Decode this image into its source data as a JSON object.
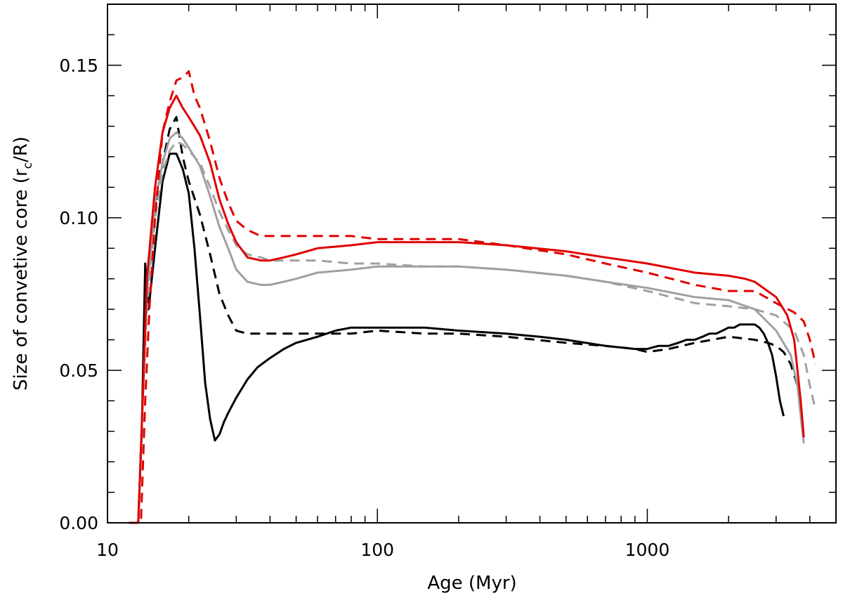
{
  "chart_data": {
    "type": "line",
    "title": "",
    "xlabel": "Age (Myr)",
    "ylabel_parts": {
      "prefix": "Size of convetive core (r",
      "sub": "c",
      "suffix": "/R)"
    },
    "xscale": "log",
    "xlim": [
      10,
      5000
    ],
    "ylim": [
      0,
      0.17
    ],
    "xticks": [
      {
        "value": 10,
        "label": "10"
      },
      {
        "value": 100,
        "label": "100"
      },
      {
        "value": 1000,
        "label": "1000"
      }
    ],
    "yticks": [
      {
        "value": 0.0,
        "label": "0.00"
      },
      {
        "value": 0.05,
        "label": "0.05"
      },
      {
        "value": 0.1,
        "label": "0.10"
      },
      {
        "value": 0.15,
        "label": "0.15"
      }
    ],
    "yminor_step": 0.01,
    "grid": false,
    "series": [
      {
        "name": "black solid",
        "color": "#000000",
        "dash": "solid",
        "x": [
          13,
          13.4,
          13.8,
          14.2,
          15,
          16,
          17,
          18,
          19,
          20,
          21,
          22,
          23,
          24,
          25,
          26,
          27,
          28,
          30,
          33,
          36,
          40,
          45,
          50,
          60,
          70,
          80,
          100,
          120,
          150,
          200,
          300,
          400,
          500,
          700,
          900,
          1000,
          1100,
          1200,
          1300,
          1400,
          1500,
          1600,
          1700,
          1800,
          1900,
          2000,
          2100,
          2200,
          2300,
          2400,
          2500,
          2600,
          2700,
          2800,
          2900,
          3000,
          3100,
          3200
        ],
        "y": [
          0.0,
          0.03,
          0.085,
          0.07,
          0.09,
          0.112,
          0.121,
          0.121,
          0.116,
          0.108,
          0.09,
          0.068,
          0.046,
          0.034,
          0.027,
          0.029,
          0.033,
          0.036,
          0.041,
          0.047,
          0.051,
          0.054,
          0.057,
          0.059,
          0.061,
          0.063,
          0.064,
          0.064,
          0.064,
          0.064,
          0.063,
          0.062,
          0.061,
          0.06,
          0.058,
          0.057,
          0.057,
          0.058,
          0.058,
          0.059,
          0.06,
          0.06,
          0.061,
          0.062,
          0.062,
          0.063,
          0.064,
          0.064,
          0.065,
          0.065,
          0.065,
          0.065,
          0.064,
          0.062,
          0.059,
          0.055,
          0.048,
          0.04,
          0.035
        ]
      },
      {
        "name": "black dashed",
        "color": "#000000",
        "dash": "dashed",
        "x": [
          13,
          13.5,
          14,
          15,
          16,
          17,
          18,
          19,
          20,
          22,
          24,
          26,
          28,
          30,
          33,
          40,
          50,
          60,
          80,
          100,
          150,
          200,
          300,
          500,
          700,
          900,
          1000,
          1200,
          1500,
          2000,
          2500,
          2800,
          3000,
          3200,
          3400,
          3600
        ],
        "y": [
          0.0,
          0.04,
          0.075,
          0.1,
          0.118,
          0.129,
          0.133,
          0.12,
          0.112,
          0.101,
          0.088,
          0.075,
          0.068,
          0.063,
          0.062,
          0.062,
          0.062,
          0.062,
          0.062,
          0.063,
          0.062,
          0.062,
          0.061,
          0.059,
          0.058,
          0.057,
          0.056,
          0.057,
          0.059,
          0.061,
          0.06,
          0.059,
          0.058,
          0.056,
          0.052,
          0.045
        ]
      },
      {
        "name": "gray solid",
        "color": "#a0a0a0",
        "dash": "solid",
        "x": [
          13,
          13.5,
          14,
          15,
          16,
          17,
          18,
          19,
          20,
          22,
          24,
          26,
          28,
          30,
          33,
          37,
          40,
          45,
          50,
          60,
          80,
          100,
          150,
          200,
          300,
          500,
          700,
          1000,
          1500,
          2000,
          2500,
          3000,
          3400,
          3600,
          3700,
          3800
        ],
        "y": [
          0.0,
          0.04,
          0.075,
          0.105,
          0.118,
          0.126,
          0.128,
          0.126,
          0.123,
          0.117,
          0.107,
          0.097,
          0.09,
          0.083,
          0.079,
          0.078,
          0.078,
          0.079,
          0.08,
          0.082,
          0.083,
          0.084,
          0.084,
          0.084,
          0.083,
          0.081,
          0.079,
          0.077,
          0.074,
          0.073,
          0.07,
          0.063,
          0.055,
          0.045,
          0.035,
          0.026
        ]
      },
      {
        "name": "gray dashed",
        "color": "#a0a0a0",
        "dash": "dashed",
        "x": [
          13,
          13.5,
          14,
          15,
          16,
          17,
          18,
          19,
          20,
          22,
          24,
          26,
          28,
          30,
          33,
          37,
          40,
          50,
          60,
          80,
          100,
          150,
          200,
          300,
          500,
          700,
          1000,
          1500,
          2000,
          2500,
          3000,
          3500,
          3800,
          4000,
          4200
        ],
        "y": [
          0.0,
          0.04,
          0.07,
          0.1,
          0.115,
          0.122,
          0.125,
          0.124,
          0.122,
          0.118,
          0.11,
          0.102,
          0.096,
          0.091,
          0.088,
          0.087,
          0.086,
          0.086,
          0.086,
          0.085,
          0.085,
          0.084,
          0.084,
          0.083,
          0.081,
          0.079,
          0.076,
          0.072,
          0.071,
          0.07,
          0.068,
          0.063,
          0.055,
          0.045,
          0.037
        ]
      },
      {
        "name": "red solid",
        "color": "#e00000",
        "dash": "solid",
        "x": [
          13,
          13.5,
          14,
          15,
          16,
          17,
          18,
          19,
          20,
          22,
          24,
          26,
          28,
          30,
          33,
          37,
          40,
          45,
          50,
          60,
          80,
          100,
          150,
          200,
          300,
          500,
          700,
          1000,
          1500,
          2000,
          2300,
          2500,
          3000,
          3300,
          3500,
          3600,
          3700,
          3800
        ],
        "y": [
          0.0,
          0.04,
          0.08,
          0.11,
          0.128,
          0.136,
          0.14,
          0.136,
          0.133,
          0.127,
          0.118,
          0.106,
          0.098,
          0.092,
          0.087,
          0.086,
          0.086,
          0.087,
          0.088,
          0.09,
          0.091,
          0.092,
          0.092,
          0.092,
          0.091,
          0.089,
          0.087,
          0.085,
          0.082,
          0.081,
          0.08,
          0.079,
          0.074,
          0.068,
          0.06,
          0.05,
          0.04,
          0.028
        ]
      },
      {
        "name": "red dashed",
        "color": "#e00000",
        "dash": "dashed",
        "x": [
          12,
          13.3,
          13.8,
          14.3,
          15,
          16,
          17,
          18,
          19,
          20,
          21,
          22,
          24,
          26,
          28,
          30,
          33,
          37,
          40,
          50,
          60,
          80,
          100,
          150,
          200,
          300,
          500,
          700,
          1000,
          1500,
          2000,
          2500,
          3000,
          3500,
          3800,
          4000,
          4200
        ],
        "y": [
          0.0,
          0.0,
          0.04,
          0.07,
          0.1,
          0.128,
          0.138,
          0.145,
          0.146,
          0.148,
          0.14,
          0.136,
          0.125,
          0.113,
          0.105,
          0.099,
          0.096,
          0.094,
          0.094,
          0.094,
          0.094,
          0.094,
          0.093,
          0.093,
          0.093,
          0.091,
          0.088,
          0.085,
          0.082,
          0.078,
          0.076,
          0.076,
          0.072,
          0.069,
          0.066,
          0.06,
          0.052
        ]
      }
    ]
  }
}
